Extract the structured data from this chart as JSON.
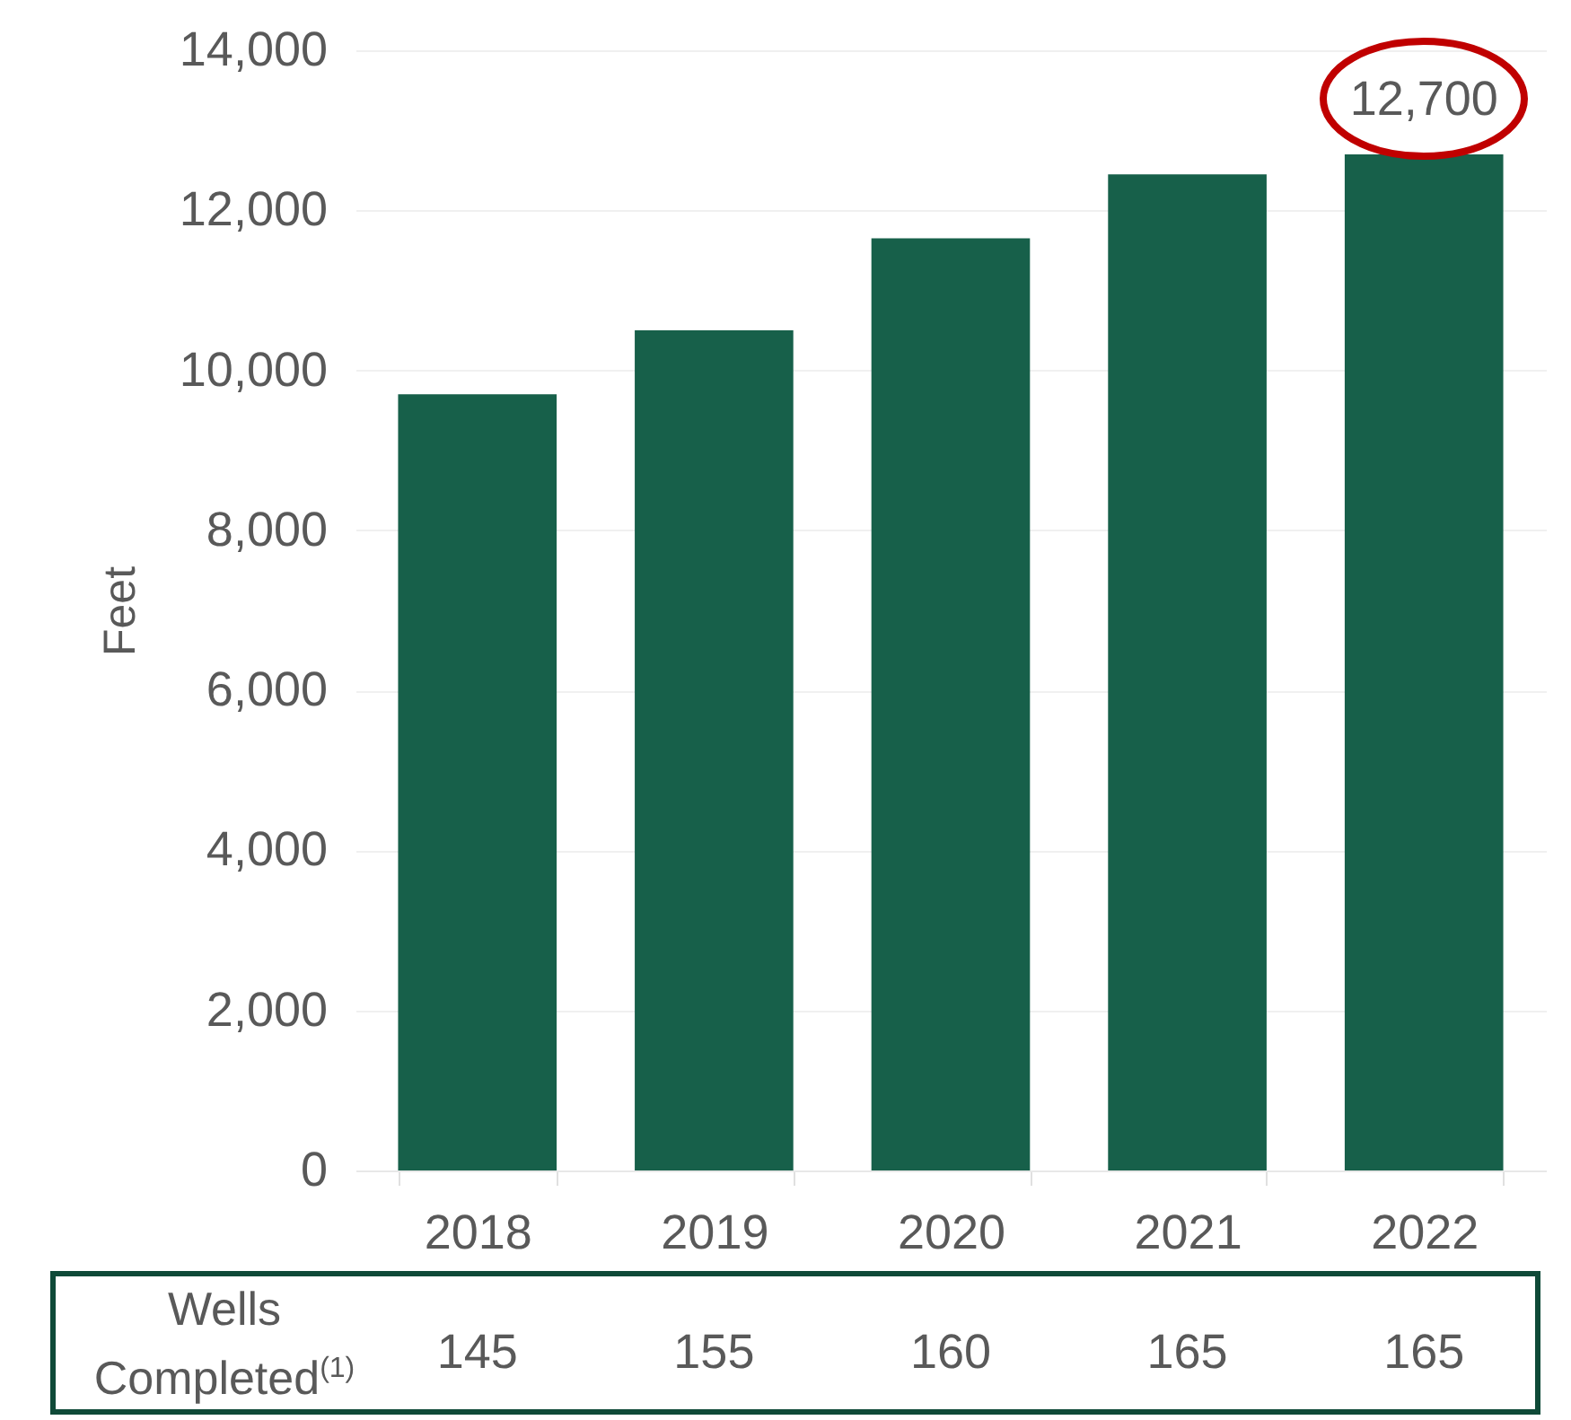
{
  "chart_data": {
    "type": "bar",
    "ylabel": "Feet",
    "categories": [
      "2018",
      "2019",
      "2020",
      "2021",
      "2022"
    ],
    "values": [
      9700,
      10500,
      11650,
      12450,
      12700
    ],
    "value_labels": [
      null,
      null,
      null,
      null,
      "12,700"
    ],
    "color": "#17604a",
    "ylim": [
      0,
      14000
    ],
    "yticks": [
      0,
      {
        "value": 2000,
        "label": "2,000"
      },
      {
        "value": 4000,
        "label": "4,000"
      },
      {
        "value": 6000,
        "label": "6,000"
      },
      {
        "value": 8000,
        "label": "8,000"
      },
      {
        "value": 10000,
        "label": "10,000"
      },
      {
        "value": 12000,
        "label": "12,000"
      },
      {
        "value": 14000,
        "label": "14,000"
      }
    ],
    "grid": "y",
    "annotations": [
      "Wells Completed$^{(1)}$",
      "145",
      "155",
      "160",
      "165",
      "165"
    ]
  }
}
